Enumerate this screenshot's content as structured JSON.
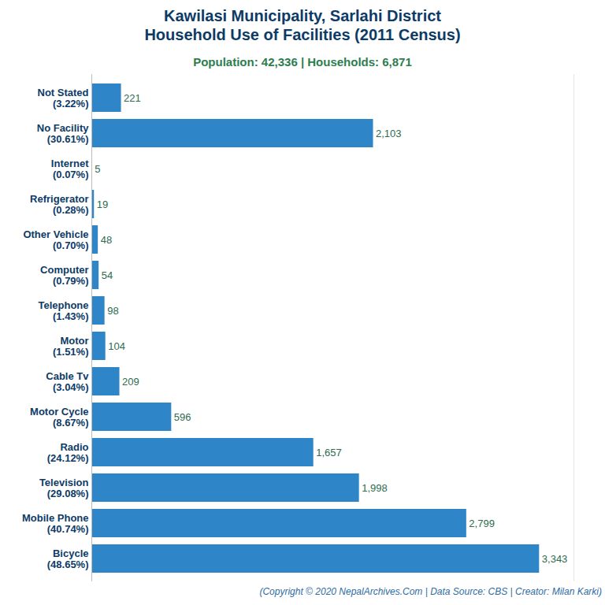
{
  "chart_data": {
    "type": "bar",
    "orientation": "horizontal",
    "title": "Kawilasi Municipality, Sarlahi District\nHousehold Use of Facilities (2011 Census)",
    "subtitle": "Population: 42,336 | Households: 6,871",
    "caption": "(Copyright © 2020 NepalArchives.Com | Data Source: CBS | Creator: Milan Karki)",
    "categories": [
      "Not Stated\n(3.22%)",
      "No Facility\n(30.61%)",
      "Internet\n(0.07%)",
      "Refrigerator\n(0.28%)",
      "Other Vehicle\n(0.70%)",
      "Computer\n(0.79%)",
      "Telephone\n(1.43%)",
      "Motor\n(1.51%)",
      "Cable Tv\n(3.04%)",
      "Motor Cycle\n(8.67%)",
      "Radio\n(24.12%)",
      "Television\n(29.08%)",
      "Mobile Phone\n(40.74%)",
      "Bicycle\n(48.65%)"
    ],
    "values": [
      221,
      2103,
      5,
      19,
      48,
      54,
      98,
      104,
      209,
      596,
      1657,
      1998,
      2799,
      3343
    ],
    "value_labels": [
      "221",
      "2,103",
      "5",
      "19",
      "48",
      "54",
      "98",
      "104",
      "209",
      "596",
      "1,657",
      "1,998",
      "2,799",
      "3,343"
    ],
    "data_labels": true,
    "color": "#2e86c8",
    "xlim": [
      0,
      3600
    ],
    "tick_labels": "y",
    "grid": false
  }
}
